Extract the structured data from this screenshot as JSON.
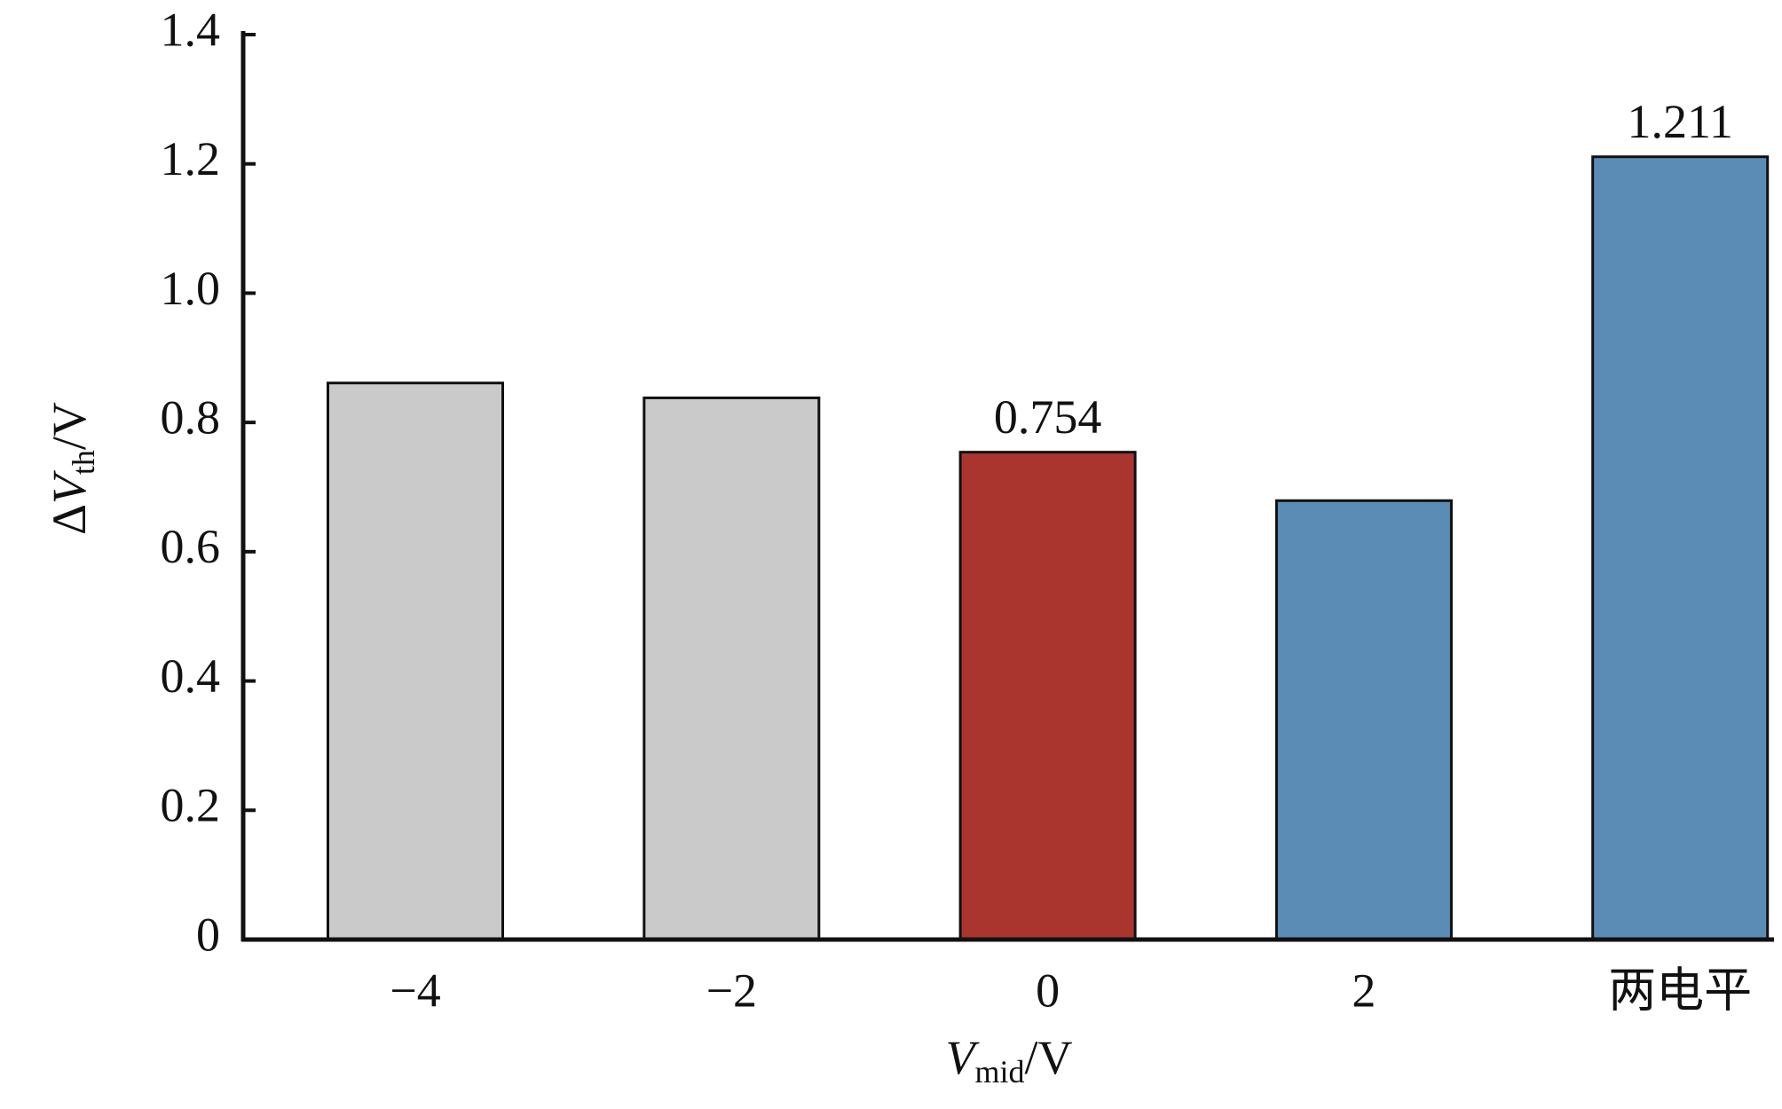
{
  "chart_data": {
    "type": "bar",
    "categories": [
      "−4",
      "−2",
      "0",
      "2",
      "两电平"
    ],
    "values": [
      0.861,
      0.838,
      0.754,
      0.679,
      1.211
    ],
    "value_labels": [
      null,
      null,
      "0.754",
      null,
      "1.211"
    ],
    "colors": [
      "#cbcacb",
      "#cbcacb",
      "#aa352e",
      "#5b8cb5",
      "#5b8cb5"
    ],
    "ylim": [
      0,
      1.4
    ],
    "yticks": [
      0,
      0.2,
      0.4,
      0.6,
      0.8,
      {
        "value": 1,
        "label": "1.0"
      },
      1.2,
      1.4
    ],
    "ylabel": [
      "Δ",
      "V",
      "th",
      "/V"
    ],
    "xlabel": [
      "V",
      "mid",
      "/V"
    ]
  }
}
